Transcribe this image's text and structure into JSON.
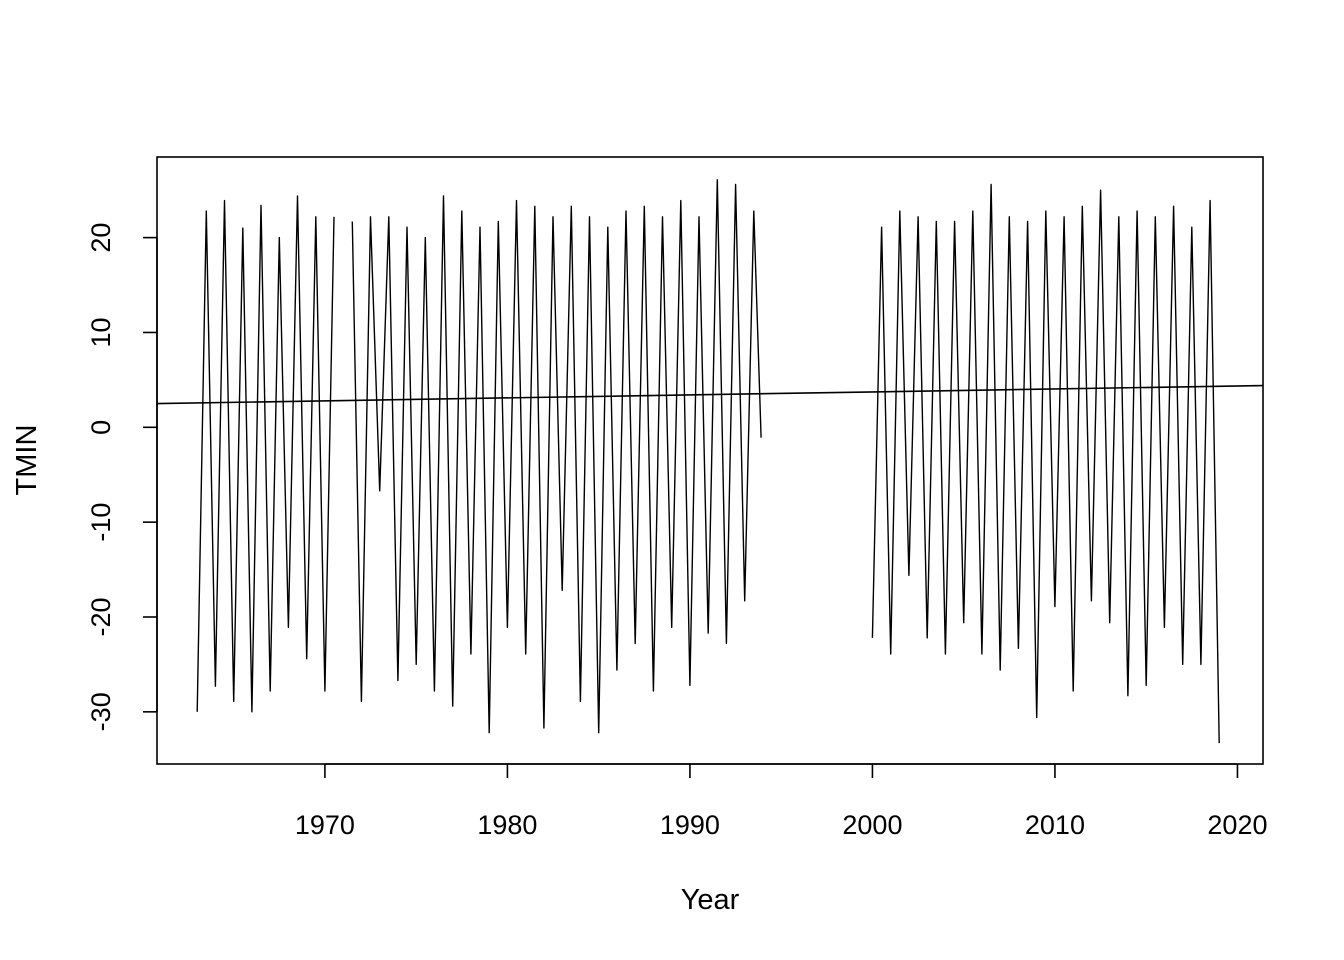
{
  "chart_data": {
    "type": "line",
    "title": "",
    "xlabel": "Year",
    "ylabel": "TMIN",
    "xlim": [
      1960.8,
      2021.4
    ],
    "ylim": [
      -35.5,
      28.5
    ],
    "x_ticks": [
      1970,
      1980,
      1990,
      2000,
      2010,
      2020
    ],
    "y_ticks": [
      -30,
      -20,
      -10,
      0,
      10,
      20
    ],
    "grid": false,
    "legend": "none",
    "line_color": "#000000",
    "series": [
      {
        "segments": [
          {
            "x": [
              1963.0,
              1963.5,
              1964.0,
              1964.5,
              1965.0,
              1965.5,
              1966.0,
              1966.5,
              1967.0,
              1967.5,
              1968.0,
              1968.5,
              1969.0,
              1969.5,
              1970.0,
              1970.5
            ],
            "y": [
              -30.0,
              22.8,
              -27.3,
              23.9,
              -28.9,
              21.0,
              -30.0,
              23.4,
              -27.8,
              20.0,
              -21.1,
              24.4,
              -24.4,
              22.2,
              -27.8,
              22.2
            ]
          },
          {
            "x": [
              1971.5,
              1972.0,
              1972.5,
              1973.0,
              1973.5,
              1974.0,
              1974.5,
              1975.0,
              1975.5,
              1976.0,
              1976.5,
              1977.0,
              1977.5,
              1978.0,
              1978.5,
              1979.0,
              1979.5,
              1980.0,
              1980.5,
              1981.0,
              1981.5,
              1982.0,
              1982.5,
              1983.0,
              1983.5,
              1984.0,
              1984.5,
              1985.0,
              1985.5,
              1986.0,
              1986.5,
              1987.0,
              1987.5,
              1988.0,
              1988.5,
              1989.0,
              1989.5,
              1990.0,
              1990.5,
              1991.0,
              1991.5,
              1992.0,
              1992.5,
              1993.0,
              1993.5,
              1993.9
            ],
            "y": [
              21.7,
              -28.9,
              22.2,
              -6.7,
              22.2,
              -26.7,
              21.1,
              -25.0,
              20.0,
              -27.8,
              24.4,
              -29.4,
              22.8,
              -23.9,
              21.1,
              -32.2,
              21.7,
              -21.1,
              23.9,
              -23.9,
              23.3,
              -31.7,
              22.2,
              -17.2,
              23.3,
              -28.9,
              22.2,
              -32.2,
              21.1,
              -25.6,
              22.8,
              -22.8,
              23.3,
              -27.8,
              22.2,
              -21.1,
              23.9,
              -27.2,
              22.2,
              -21.7,
              26.1,
              -22.8,
              25.6,
              -18.3,
              22.8,
              -1.1
            ]
          },
          {
            "x": [
              2000.0,
              2000.5,
              2001.0,
              2001.5,
              2002.0,
              2002.5,
              2003.0,
              2003.5,
              2004.0,
              2004.5,
              2005.0,
              2005.5,
              2006.0,
              2006.5,
              2007.0,
              2007.5,
              2008.0,
              2008.5,
              2009.0,
              2009.5,
              2010.0,
              2010.5,
              2011.0,
              2011.5,
              2012.0,
              2012.5,
              2013.0,
              2013.5,
              2014.0,
              2014.5,
              2015.0,
              2015.5,
              2016.0,
              2016.5,
              2017.0,
              2017.5,
              2018.0,
              2018.5,
              2019.0
            ],
            "y": [
              -22.2,
              21.1,
              -23.9,
              22.8,
              -15.6,
              22.2,
              -22.2,
              21.7,
              -23.9,
              21.7,
              -20.6,
              22.8,
              -23.9,
              25.6,
              -25.6,
              22.2,
              -23.3,
              21.7,
              -30.6,
              22.8,
              -18.9,
              22.2,
              -27.8,
              23.3,
              -18.3,
              25.0,
              -20.6,
              22.2,
              -28.3,
              22.8,
              -27.2,
              22.2,
              -21.1,
              23.3,
              -25.0,
              21.1,
              -25.0,
              23.9,
              -33.3
            ]
          }
        ]
      }
    ],
    "trend_line": {
      "x": [
        1960.8,
        2021.4
      ],
      "y": [
        2.5,
        4.4
      ]
    }
  }
}
